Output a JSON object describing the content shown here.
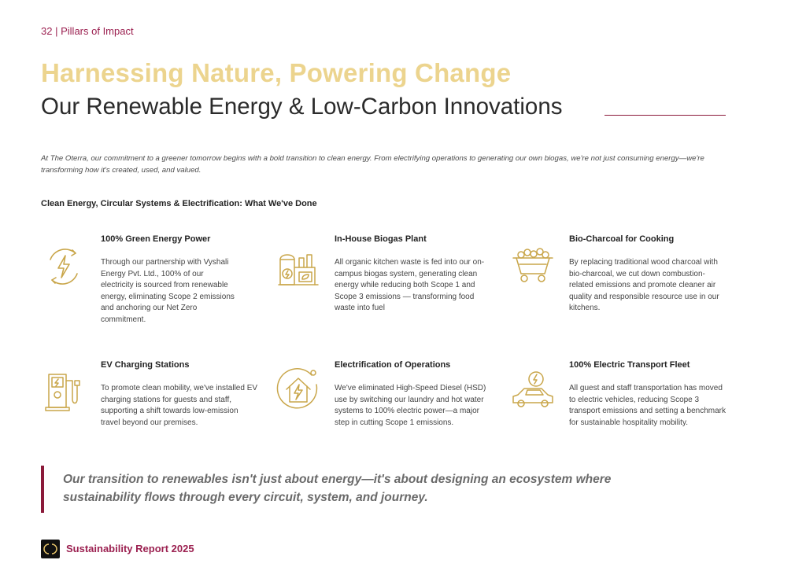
{
  "header": {
    "page_number": "32",
    "separator": "|",
    "section_name": "Pillars of Impact"
  },
  "title": {
    "line1": "Harnessing Nature, Powering Change",
    "line2": "Our Renewable Energy & Low-Carbon Innovations"
  },
  "intro": "At The Oterra, our commitment to a greener tomorrow begins with a bold transition to clean energy. From electrifying operations to generating our own biogas, we're not just consuming energy—we're transforming how it's created, used, and valued.",
  "section_heading": "Clean Energy, Circular Systems & Electrification: What We've Done",
  "items": [
    {
      "icon": "green-energy-icon",
      "title": "100% Green Energy Power",
      "desc": "Through our partnership with Vyshali Energy Pvt. Ltd., 100% of our electricity is sourced from renewable energy, eliminating Scope 2 emissions and anchoring our Net Zero commitment."
    },
    {
      "icon": "biogas-plant-icon",
      "title": "In-House Biogas Plant",
      "desc": "All organic kitchen waste is fed into our on-campus biogas system, generating clean energy while reducing both Scope 1 and Scope 3 emissions — transforming food waste into fuel"
    },
    {
      "icon": "charcoal-cart-icon",
      "title": "Bio-Charcoal for Cooking",
      "desc": "By replacing traditional wood charcoal with bio-charcoal, we cut down combustion-related emissions and promote cleaner air quality and responsible resource use in our kitchens."
    },
    {
      "icon": "ev-charger-icon",
      "title": "EV Charging Stations",
      "desc": "To promote clean mobility, we've installed EV charging stations for guests and staff, supporting a shift towards low-emission travel beyond our premises."
    },
    {
      "icon": "electric-home-icon",
      "title": "Electrification of Operations",
      "desc": "We've eliminated High-Speed Diesel (HSD) use by switching our laundry and hot water systems to 100% electric power—a major step in cutting Scope 1 emissions."
    },
    {
      "icon": "electric-car-icon",
      "title": "100% Electric Transport Fleet",
      "desc": "All guest and staff transportation has moved to electric vehicles, reducing Scope 3 transport emissions and setting a benchmark for sustainable hospitality mobility."
    }
  ],
  "quote": "Our transition to renewables isn't just about energy—it's about designing an ecosystem where sustainability flows through every circuit, system, and journey.",
  "footer": {
    "report_title": "Sustainability Report 2025"
  },
  "colors": {
    "accent_gold": "#ecd48e",
    "icon_gold": "#c9a64a",
    "accent_maroon": "#8b1a3a",
    "accent_pink": "#9b2050"
  }
}
